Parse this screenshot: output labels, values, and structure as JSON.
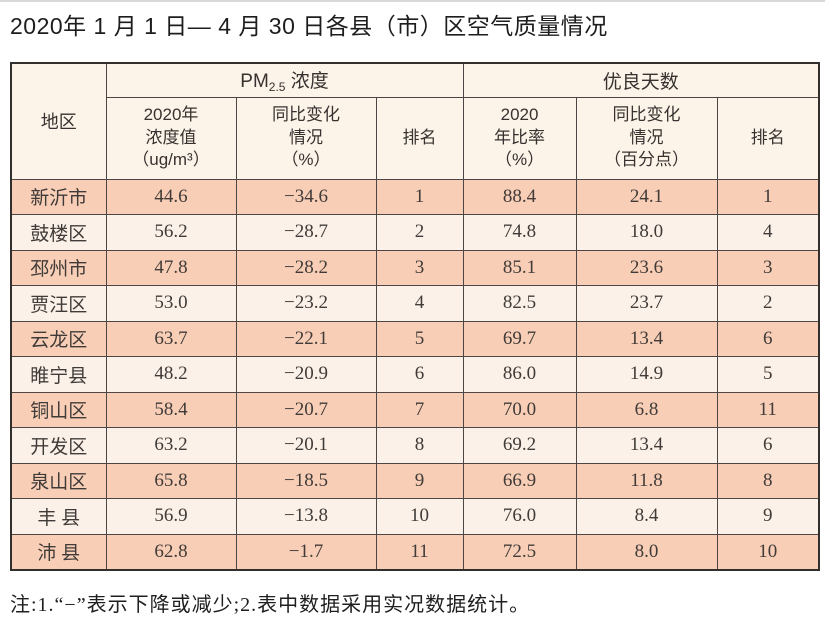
{
  "page": {
    "title": "2020年 1 月 1 日— 4 月 30 日各县（市）区空气质量情况",
    "footnote": "注:1.“−”表示下降或减少;2.表中数据采用实况数据统计。"
  },
  "colors": {
    "row-odd": "#f8ceb6",
    "row-even": "#fbf1e8",
    "header-bg": "#fcf3e9"
  },
  "table": {
    "header": {
      "region": "地区",
      "pm25_group": {
        "prefix": "PM",
        "sub": "2.5",
        "suffix": " 浓度"
      },
      "good_group": "优良天数",
      "pm25_value": "2020年\n浓度值\n（ug/m³）",
      "pm25_change": "同比变化\n情况\n（%）",
      "pm25_rank": "排名",
      "good_rate": "2020\n年比率\n（%）",
      "good_change": "同比变化\n情况\n（百分点）",
      "good_rank": "排名"
    },
    "rows": [
      {
        "region": "新沂市",
        "pm25_value": "44.6",
        "pm25_change": "−34.6",
        "pm25_rank": "1",
        "good_rate": "88.4",
        "good_change": "24.1",
        "good_rank": "1"
      },
      {
        "region": "鼓楼区",
        "pm25_value": "56.2",
        "pm25_change": "−28.7",
        "pm25_rank": "2",
        "good_rate": "74.8",
        "good_change": "18.0",
        "good_rank": "4"
      },
      {
        "region": "邳州市",
        "pm25_value": "47.8",
        "pm25_change": "−28.2",
        "pm25_rank": "3",
        "good_rate": "85.1",
        "good_change": "23.6",
        "good_rank": "3"
      },
      {
        "region": "贾汪区",
        "pm25_value": "53.0",
        "pm25_change": "−23.2",
        "pm25_rank": "4",
        "good_rate": "82.5",
        "good_change": "23.7",
        "good_rank": "2"
      },
      {
        "region": "云龙区",
        "pm25_value": "63.7",
        "pm25_change": "−22.1",
        "pm25_rank": "5",
        "good_rate": "69.7",
        "good_change": "13.4",
        "good_rank": "6"
      },
      {
        "region": "睢宁县",
        "pm25_value": "48.2",
        "pm25_change": "−20.9",
        "pm25_rank": "6",
        "good_rate": "86.0",
        "good_change": "14.9",
        "good_rank": "5"
      },
      {
        "region": "铜山区",
        "pm25_value": "58.4",
        "pm25_change": "−20.7",
        "pm25_rank": "7",
        "good_rate": "70.0",
        "good_change": "6.8",
        "good_rank": "11"
      },
      {
        "region": "开发区",
        "pm25_value": "63.2",
        "pm25_change": "−20.1",
        "pm25_rank": "8",
        "good_rate": "69.2",
        "good_change": "13.4",
        "good_rank": "6"
      },
      {
        "region": "泉山区",
        "pm25_value": "65.8",
        "pm25_change": "−18.5",
        "pm25_rank": "9",
        "good_rate": "66.9",
        "good_change": "11.8",
        "good_rank": "8"
      },
      {
        "region": "丰 县",
        "pm25_value": "56.9",
        "pm25_change": "−13.8",
        "pm25_rank": "10",
        "good_rate": "76.0",
        "good_change": "8.4",
        "good_rank": "9"
      },
      {
        "region": "沛 县",
        "pm25_value": "62.8",
        "pm25_change": "−1.7",
        "pm25_rank": "11",
        "good_rate": "72.5",
        "good_change": "8.0",
        "good_rank": "10"
      }
    ]
  }
}
